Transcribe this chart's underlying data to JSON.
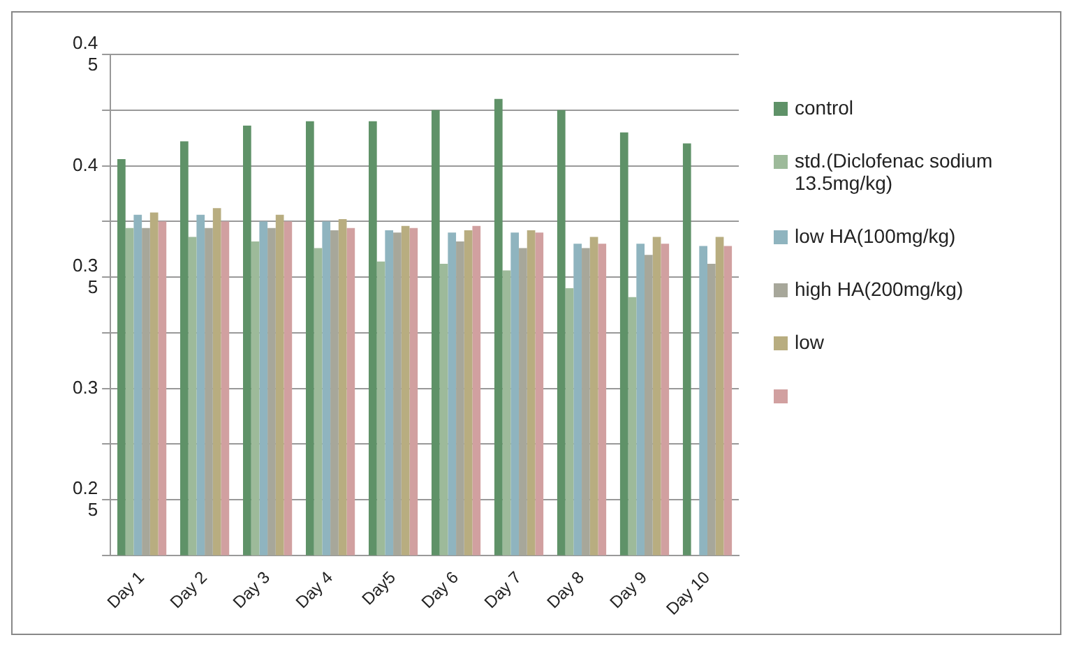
{
  "chart_data": {
    "type": "bar",
    "categories": [
      "Day 1",
      "Day 2",
      "Day 3",
      "Day 4",
      "Day5",
      "Day 6",
      "Day 7",
      "Day 8",
      "Day 9",
      "Day 10"
    ],
    "series": [
      {
        "name": "control",
        "color": "#5f9268",
        "values": [
          0.403,
          0.411,
          0.418,
          0.42,
          0.42,
          0.425,
          0.43,
          0.425,
          0.415,
          0.41
        ]
      },
      {
        "name": "std.(Diclofenac sodium 13.5mg/kg)",
        "color": "#9dba9a",
        "values": [
          0.372,
          0.368,
          0.366,
          0.363,
          0.357,
          0.356,
          0.353,
          0.345,
          0.341,
          null
        ]
      },
      {
        "name": "low HA(100mg/kg)",
        "color": "#8fb4bf",
        "values": [
          0.378,
          0.378,
          0.375,
          0.375,
          0.371,
          0.37,
          0.37,
          0.365,
          0.365,
          0.364
        ]
      },
      {
        "name": "high HA(200mg/kg)",
        "color": "#a7a79a",
        "values": [
          0.372,
          0.372,
          0.372,
          0.371,
          0.37,
          0.366,
          0.363,
          0.363,
          0.36,
          0.356
        ]
      },
      {
        "name": "low",
        "color": "#b8ad80",
        "values": [
          0.379,
          0.381,
          0.378,
          0.376,
          0.373,
          0.371,
          0.371,
          0.368,
          0.368,
          0.368
        ]
      },
      {
        "color": "#d1a0a0",
        "values": [
          0.375,
          0.375,
          0.375,
          0.372,
          0.372,
          0.373,
          0.37,
          0.365,
          0.365,
          0.364
        ]
      }
    ],
    "ylim": [
      0.225,
      0.45
    ],
    "yticks": [
      {
        "value": 0.45,
        "label": "0.4\n5"
      },
      {
        "value": 0.425,
        "label": null
      },
      {
        "value": 0.4,
        "label": "0.4"
      },
      {
        "value": 0.375,
        "label": null
      },
      {
        "value": 0.35,
        "label": "0.3\n5"
      },
      {
        "value": 0.325,
        "label": null
      },
      {
        "value": 0.3,
        "label": "0.3"
      },
      {
        "value": 0.275,
        "label": null
      },
      {
        "value": 0.25,
        "label": "0.2\n5"
      },
      {
        "value": 0.225,
        "label": null
      }
    ],
    "grid": "y",
    "legend": "right"
  }
}
